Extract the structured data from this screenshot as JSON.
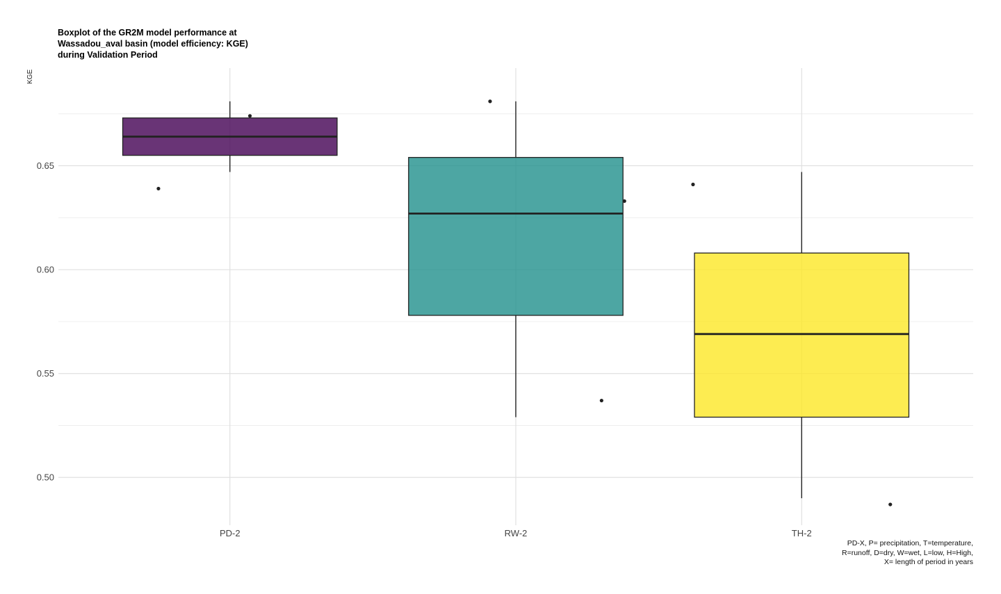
{
  "chart_data": {
    "type": "boxplot",
    "title": "Boxplot of the GR2M model performance at\nWassadou_aval basin (model efficiency: KGE)\nduring Validation Period",
    "xlabel": "",
    "ylabel": "KGE",
    "ylim": [
      0.477,
      0.697
    ],
    "yticks": [
      0.5,
      0.55,
      0.6,
      0.65
    ],
    "ytick_labels": [
      "0.50",
      "0.55",
      "0.60",
      "0.65"
    ],
    "grid": true,
    "categories": [
      "PD-2",
      "RW-2",
      "TH-2"
    ],
    "boxes": [
      {
        "name": "PD-2",
        "color": "#440154",
        "whisker_low": 0.647,
        "q1": 0.655,
        "median": 0.664,
        "q3": 0.673,
        "whisker_high": 0.681
      },
      {
        "name": "RW-2",
        "color": "#21908C",
        "whisker_low": 0.529,
        "q1": 0.578,
        "median": 0.627,
        "q3": 0.654,
        "whisker_high": 0.681
      },
      {
        "name": "TH-2",
        "color": "#FDE725",
        "whisker_low": 0.49,
        "q1": 0.529,
        "median": 0.569,
        "q3": 0.608,
        "whisker_high": 0.647
      }
    ],
    "points": [
      {
        "category": "PD-2",
        "offset": -0.25,
        "y": 0.639
      },
      {
        "category": "PD-2",
        "offset": 0.07,
        "y": 0.674
      },
      {
        "category": "RW-2",
        "offset": -0.09,
        "y": 0.681
      },
      {
        "category": "RW-2",
        "offset": 0.3,
        "y": 0.537
      },
      {
        "category": "RW-2",
        "offset": 0.38,
        "y": 0.633
      },
      {
        "category": "TH-2",
        "offset": -0.38,
        "y": 0.641
      },
      {
        "category": "TH-2",
        "offset": 0.31,
        "y": 0.487
      }
    ],
    "caption": "PD-X, P= precipitation, T=temperature,\nR=runoff, D=dry, W=wet, L=low, H=High,\nX= length of period in years"
  }
}
